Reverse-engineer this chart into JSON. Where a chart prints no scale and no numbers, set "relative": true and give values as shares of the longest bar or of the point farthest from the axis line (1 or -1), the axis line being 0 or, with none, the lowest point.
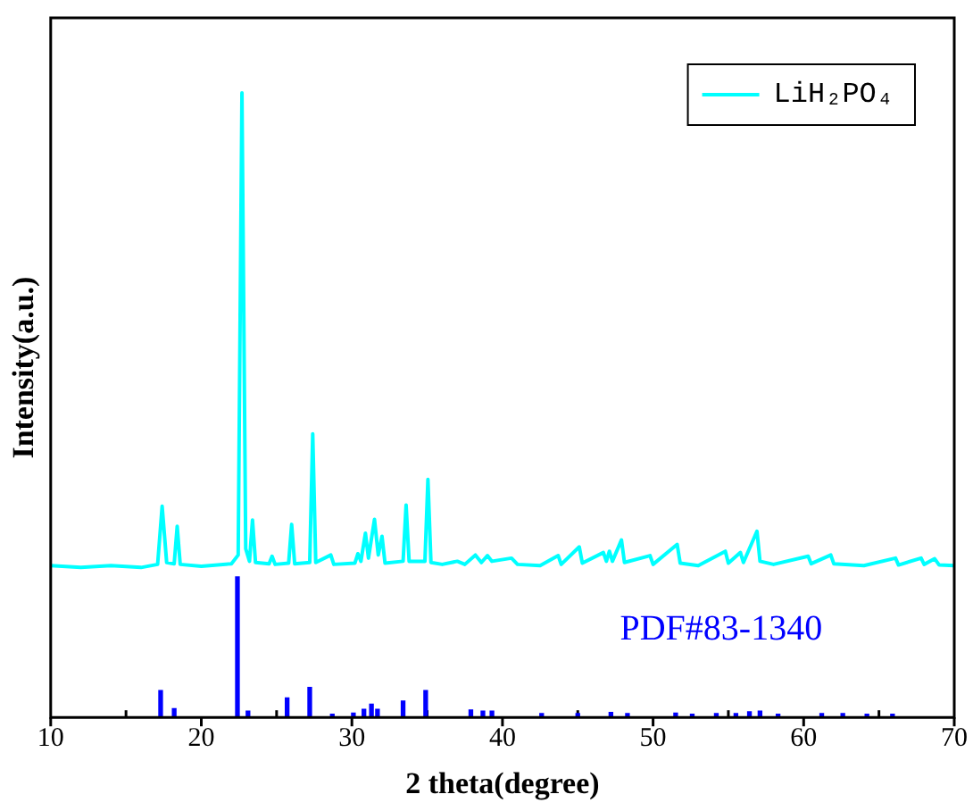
{
  "chart_data": {
    "type": "line",
    "xlabel": "2 theta(degree)",
    "ylabel": "Intensity(a.u.)",
    "relative": true,
    "xlim": [
      10,
      70
    ],
    "xticks": [
      10,
      {
        "value": 15,
        "label": null
      },
      20,
      {
        "value": 25,
        "label": null
      },
      30,
      {
        "value": 35,
        "label": null
      },
      40,
      {
        "value": 45,
        "label": null
      },
      50,
      {
        "value": 55,
        "label": null
      },
      60,
      {
        "value": 65,
        "label": null
      },
      70
    ],
    "grid": false,
    "legend": "top right",
    "marker": "none",
    "series": [
      {
        "name": "LiH₂PO₄",
        "color": "#00ffff",
        "x": [
          10,
          12,
          14,
          16,
          17.1,
          17.4,
          17.7,
          18.2,
          18.4,
          18.6,
          20,
          22,
          22.45,
          22.7,
          22.95,
          23.2,
          23.4,
          23.6,
          24.5,
          24.7,
          24.9,
          25.8,
          26.0,
          26.2,
          27.2,
          27.4,
          27.6,
          28.6,
          28.8,
          30.2,
          30.4,
          30.6,
          30.9,
          31.1,
          31.5,
          31.75,
          32.0,
          32.2,
          33.4,
          33.6,
          33.8,
          34.85,
          35.05,
          35.25,
          36,
          37,
          37.5,
          38.2,
          38.6,
          39.0,
          39.3,
          40.6,
          41,
          42.5,
          43.7,
          43.9,
          45.1,
          45.3,
          46.7,
          46.9,
          47.1,
          47.3,
          47.9,
          48.1,
          49.8,
          50,
          51.6,
          51.8,
          53,
          54.8,
          55,
          55.8,
          56,
          56.9,
          57.1,
          58,
          60.3,
          60.5,
          61.8,
          62,
          64,
          66.1,
          66.3,
          67.8,
          68.0,
          68.7,
          69,
          70
        ],
        "values": [
          0.243,
          0.24,
          0.243,
          0.24,
          0.245,
          0.338,
          0.248,
          0.246,
          0.306,
          0.245,
          0.242,
          0.246,
          0.26,
          1.0,
          0.27,
          0.25,
          0.316,
          0.248,
          0.246,
          0.258,
          0.245,
          0.247,
          0.309,
          0.246,
          0.248,
          0.454,
          0.248,
          0.26,
          0.245,
          0.247,
          0.262,
          0.25,
          0.295,
          0.255,
          0.317,
          0.26,
          0.29,
          0.247,
          0.25,
          0.34,
          0.25,
          0.25,
          0.381,
          0.248,
          0.245,
          0.25,
          0.245,
          0.26,
          0.248,
          0.259,
          0.25,
          0.255,
          0.245,
          0.243,
          0.259,
          0.245,
          0.273,
          0.247,
          0.264,
          0.25,
          0.266,
          0.25,
          0.284,
          0.248,
          0.259,
          0.245,
          0.277,
          0.247,
          0.243,
          0.266,
          0.247,
          0.264,
          0.248,
          0.298,
          0.25,
          0.245,
          0.258,
          0.246,
          0.26,
          0.246,
          0.243,
          0.255,
          0.244,
          0.255,
          0.245,
          0.254,
          0.244,
          0.243
        ]
      },
      {
        "name": "PDF#83-1340",
        "type": "bar",
        "color": "#0000ff",
        "x": [
          17.3,
          18.2,
          22.4,
          23.1,
          25.7,
          27.2,
          28.7,
          30.1,
          30.8,
          31.3,
          31.7,
          33.4,
          34.9,
          37.9,
          38.7,
          39.3,
          42.6,
          45.0,
          47.2,
          48.3,
          51.5,
          52.6,
          54.2,
          55.5,
          56.4,
          57.1,
          58.3,
          61.2,
          62.6,
          64.2,
          65.9
        ],
        "values": [
          0.043,
          0.014,
          0.225,
          0.01,
          0.031,
          0.048,
          0.005,
          0.007,
          0.013,
          0.021,
          0.013,
          0.026,
          0.043,
          0.012,
          0.01,
          0.01,
          0.006,
          0.006,
          0.008,
          0.006,
          0.007,
          0.005,
          0.006,
          0.006,
          0.009,
          0.01,
          0.005,
          0.006,
          0.006,
          0.005,
          0.005
        ]
      }
    ]
  }
}
